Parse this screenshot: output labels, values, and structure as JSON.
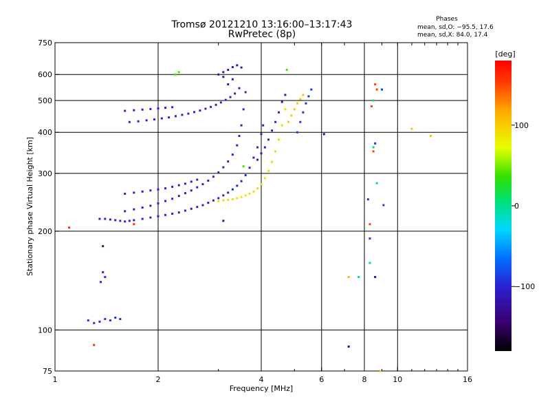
{
  "chart_data": {
    "type": "scatter",
    "title": "Tromsø 20121210 13:16:00–13:17:43",
    "subtitle": "RwPretec (8p)",
    "xlabel": "Frequency [MHz]",
    "ylabel": "Stationary phase Virtual Height [km]",
    "xscale": "log",
    "yscale": "log",
    "xlim": [
      1,
      16
    ],
    "ylim": [
      75,
      750
    ],
    "x_ticks": [
      1,
      2,
      4,
      6,
      8,
      10,
      16
    ],
    "y_ticks": [
      75,
      100,
      200,
      300,
      400,
      500,
      600,
      750
    ],
    "x_gridlines": [
      2,
      4,
      6,
      8,
      10
    ],
    "y_gridlines": [
      100,
      200,
      300,
      400,
      500,
      600
    ],
    "grid": true,
    "legend": "none",
    "stats": {
      "heading": "Phases",
      "line1": "mean, sd,O: −95.5, 17.6",
      "line2": "mean, sd,X:  84.0, 17.4"
    },
    "colorbar": {
      "label": "[deg]",
      "ticks": [
        100,
        0,
        -100
      ],
      "tick_labels": [
        "100",
        "0",
        "−100"
      ],
      "range": [
        -180,
        180
      ]
    },
    "series": [
      {
        "phase": -100,
        "points": [
          [
            1.35,
            218
          ],
          [
            1.4,
            218
          ],
          [
            1.45,
            217
          ],
          [
            1.5,
            216
          ],
          [
            1.55,
            215
          ],
          [
            1.6,
            214
          ],
          [
            1.65,
            215
          ],
          [
            1.7,
            216
          ],
          [
            1.8,
            218
          ],
          [
            1.9,
            220
          ],
          [
            2.0,
            222
          ],
          [
            2.1,
            224
          ],
          [
            2.2,
            226
          ],
          [
            2.3,
            228
          ],
          [
            2.4,
            231
          ],
          [
            2.5,
            234
          ],
          [
            2.6,
            237
          ],
          [
            2.7,
            240
          ],
          [
            2.8,
            244
          ],
          [
            2.9,
            248
          ],
          [
            3.0,
            252
          ],
          [
            3.1,
            257
          ],
          [
            3.2,
            262
          ],
          [
            3.3,
            268
          ],
          [
            3.4,
            275
          ],
          [
            3.5,
            284
          ],
          [
            3.6,
            296
          ],
          [
            3.7,
            312
          ],
          [
            3.8,
            335
          ],
          [
            3.9,
            360
          ],
          [
            4.0,
            395
          ],
          [
            4.05,
            420
          ]
        ]
      },
      {
        "phase": -100,
        "points": [
          [
            1.6,
            230
          ],
          [
            1.7,
            233
          ],
          [
            1.8,
            236
          ],
          [
            1.9,
            239
          ],
          [
            2.0,
            243
          ],
          [
            2.1,
            247
          ],
          [
            2.2,
            251
          ],
          [
            2.3,
            256
          ],
          [
            2.4,
            261
          ],
          [
            2.5,
            266
          ],
          [
            2.6,
            272
          ],
          [
            2.7,
            278
          ],
          [
            2.8,
            285
          ],
          [
            2.9,
            293
          ],
          [
            3.0,
            302
          ],
          [
            3.1,
            313
          ],
          [
            3.2,
            326
          ],
          [
            3.3,
            342
          ],
          [
            3.4,
            365
          ],
          [
            3.45,
            390
          ],
          [
            3.5,
            420
          ],
          [
            3.55,
            470
          ],
          [
            3.6,
            530
          ]
        ]
      },
      {
        "phase": -100,
        "points": [
          [
            1.6,
            260
          ],
          [
            1.7,
            262
          ],
          [
            1.8,
            264
          ],
          [
            1.9,
            266
          ],
          [
            2.0,
            268
          ],
          [
            2.1,
            270
          ],
          [
            2.2,
            273
          ],
          [
            2.3,
            276
          ],
          [
            2.4,
            279
          ],
          [
            2.5,
            283
          ],
          [
            2.6,
            287
          ]
        ]
      },
      {
        "phase": -100,
        "points": [
          [
            1.65,
            430
          ],
          [
            1.75,
            432
          ],
          [
            1.85,
            435
          ],
          [
            1.95,
            438
          ],
          [
            2.05,
            441
          ],
          [
            2.15,
            444
          ],
          [
            2.25,
            448
          ],
          [
            2.35,
            452
          ],
          [
            2.45,
            456
          ],
          [
            2.55,
            461
          ],
          [
            2.65,
            466
          ],
          [
            2.75,
            472
          ],
          [
            2.85,
            478
          ],
          [
            2.95,
            485
          ],
          [
            3.05,
            493
          ],
          [
            3.15,
            502
          ],
          [
            3.25,
            512
          ],
          [
            3.35,
            525
          ],
          [
            3.45,
            545
          ]
        ]
      },
      {
        "phase": -100,
        "points": [
          [
            1.6,
            465
          ],
          [
            1.7,
            467
          ],
          [
            1.8,
            469
          ],
          [
            1.9,
            471
          ],
          [
            2.0,
            473
          ],
          [
            2.1,
            475
          ],
          [
            2.2,
            477
          ]
        ]
      },
      {
        "phase": -110,
        "points": [
          [
            3.0,
            600
          ],
          [
            3.1,
            610
          ],
          [
            3.2,
            620
          ],
          [
            3.3,
            632
          ],
          [
            3.4,
            640
          ],
          [
            3.5,
            630
          ],
          [
            3.3,
            580
          ],
          [
            3.2,
            560
          ],
          [
            3.1,
            590
          ]
        ]
      },
      {
        "phase": -95,
        "points": [
          [
            1.25,
            107
          ],
          [
            1.3,
            105
          ],
          [
            1.35,
            106
          ],
          [
            1.4,
            108
          ],
          [
            1.45,
            107
          ],
          [
            1.5,
            109
          ],
          [
            1.55,
            108
          ],
          [
            1.38,
            150
          ],
          [
            1.36,
            140
          ],
          [
            1.4,
            145
          ]
        ]
      },
      {
        "phase": -105,
        "points": [
          [
            3.9,
            330
          ],
          [
            4.0,
            345
          ],
          [
            4.1,
            360
          ],
          [
            4.2,
            380
          ],
          [
            4.3,
            405
          ],
          [
            4.4,
            430
          ],
          [
            4.5,
            460
          ],
          [
            4.6,
            495
          ],
          [
            4.7,
            520
          ]
        ]
      },
      {
        "phase": 90,
        "points": [
          [
            3.0,
            247
          ],
          [
            3.1,
            248
          ],
          [
            3.2,
            249
          ],
          [
            3.3,
            250
          ],
          [
            3.4,
            252
          ],
          [
            3.5,
            254
          ],
          [
            3.6,
            257
          ],
          [
            3.7,
            260
          ],
          [
            3.8,
            264
          ],
          [
            3.9,
            270
          ],
          [
            4.0,
            278
          ],
          [
            4.1,
            290
          ],
          [
            4.2,
            305
          ],
          [
            4.3,
            325
          ],
          [
            4.4,
            350
          ],
          [
            4.5,
            380
          ],
          [
            4.6,
            420
          ],
          [
            4.7,
            470
          ]
        ]
      },
      {
        "phase": 100,
        "points": [
          [
            4.8,
            430
          ],
          [
            4.9,
            450
          ],
          [
            5.0,
            470
          ],
          [
            5.1,
            490
          ],
          [
            5.2,
            505
          ],
          [
            5.3,
            520
          ]
        ]
      },
      {
        "phase": -90,
        "points": [
          [
            5.1,
            400
          ],
          [
            5.2,
            430
          ],
          [
            5.3,
            460
          ],
          [
            5.4,
            490
          ],
          [
            5.5,
            515
          ],
          [
            5.6,
            540
          ]
        ]
      },
      {
        "phase": 40,
        "points": [
          [
            2.25,
            600
          ],
          [
            2.3,
            610
          ],
          [
            4.75,
            620
          ],
          [
            3.55,
            315
          ]
        ]
      },
      {
        "phase": 150,
        "points": [
          [
            8.6,
            560
          ],
          [
            8.7,
            540
          ],
          [
            8.4,
            480
          ],
          [
            8.5,
            350
          ],
          [
            8.3,
            210
          ]
        ]
      },
      {
        "phase": -90,
        "points": [
          [
            8.2,
            250
          ],
          [
            8.3,
            190
          ],
          [
            8.6,
            370
          ],
          [
            9.0,
            540
          ],
          [
            9.1,
            240
          ]
        ]
      },
      {
        "phase": 10,
        "points": [
          [
            8.5,
            500
          ],
          [
            8.5,
            360
          ],
          [
            8.3,
            160
          ],
          [
            7.7,
            145
          ],
          [
            8.7,
            280
          ]
        ]
      },
      {
        "phase": 110,
        "points": [
          [
            11.0,
            410
          ],
          [
            12.5,
            390
          ],
          [
            7.2,
            145
          ],
          [
            8.9,
            75
          ]
        ]
      },
      {
        "phase": 160,
        "points": [
          [
            1.3,
            90
          ],
          [
            1.1,
            205
          ],
          [
            1.7,
            210
          ]
        ]
      },
      {
        "phase": -130,
        "points": [
          [
            1.38,
            180
          ],
          [
            8.6,
            145
          ],
          [
            7.2,
            89
          ],
          [
            6.1,
            395
          ],
          [
            3.1,
            215
          ]
        ]
      }
    ]
  }
}
